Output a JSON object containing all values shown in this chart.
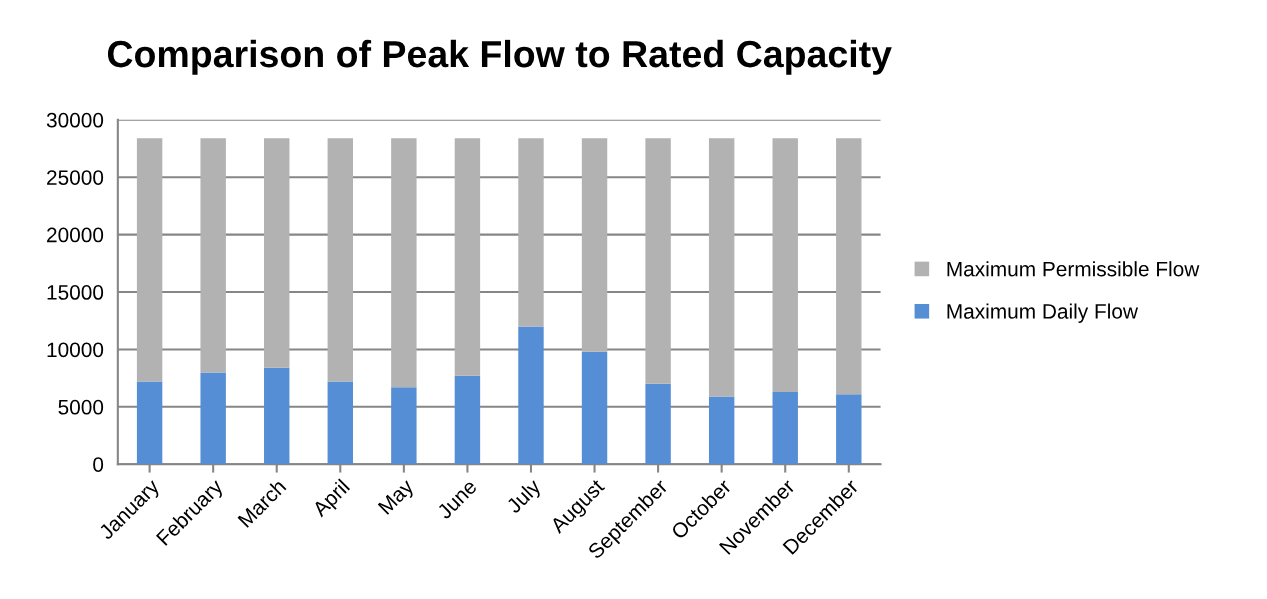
{
  "chart_data": {
    "type": "bar",
    "title": "Comparison of Peak Flow to Rated Capacity",
    "categories": [
      "January",
      "February",
      "March",
      "April",
      "May",
      "June",
      "July",
      "August",
      "September",
      "October",
      "November",
      "December"
    ],
    "stacked": true,
    "series": [
      {
        "name": "Maximum Daily Flow",
        "color": "#558ed5",
        "values": [
          7200,
          8000,
          8400,
          7200,
          6700,
          7700,
          12000,
          9800,
          7000,
          5900,
          6300,
          6100
        ]
      },
      {
        "name": "Maximum Permissible Flow",
        "color": "#b2b2b2",
        "values": [
          21200,
          20400,
          20000,
          21200,
          21700,
          20700,
          16400,
          18600,
          21400,
          22500,
          22100,
          22300
        ]
      }
    ],
    "ylim": [
      0,
      30000
    ],
    "yticks": [
      0,
      5000,
      10000,
      15000,
      20000,
      25000,
      30000
    ],
    "grid": "y",
    "legend": "right"
  }
}
